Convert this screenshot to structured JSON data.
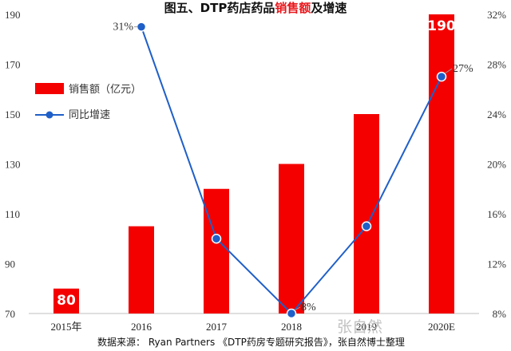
{
  "title": {
    "part1": "图五、DTP药店药品",
    "part2": "销售额",
    "part3": "及增速"
  },
  "source": "数据来源： Ryan Partners 《DTP药房专题研究报告》，张自然博士整理",
  "watermark": "张自然",
  "colors": {
    "bar": "#f40000",
    "line": "#1f5fc8",
    "accent_title": "#e8171c"
  },
  "chart_data": {
    "type": "bar",
    "categories": [
      "2015年",
      "2016",
      "2017",
      "2018",
      "2019",
      "2020E"
    ],
    "series": [
      {
        "name": "销售额（亿元）",
        "type": "bar",
        "axis": "left",
        "values": [
          80,
          105,
          120,
          130,
          150,
          190
        ],
        "labels": [
          "80",
          "",
          "",
          "",
          "",
          "190"
        ]
      },
      {
        "name": "同比增速",
        "type": "line",
        "axis": "right",
        "values": [
          null,
          31,
          14,
          8,
          15,
          27
        ],
        "labels": [
          "",
          "31%",
          "",
          "8%",
          "",
          "27%"
        ]
      }
    ],
    "y_left": {
      "range": [
        70,
        190
      ],
      "ticks": [
        "70",
        "90",
        "110",
        "130",
        "150",
        "170",
        "190"
      ]
    },
    "y_right": {
      "range": [
        8,
        32
      ],
      "ticks": [
        "8%",
        "12%",
        "16%",
        "20%",
        "24%",
        "28%",
        "32%"
      ]
    },
    "legend_position": "left",
    "grid": false
  }
}
